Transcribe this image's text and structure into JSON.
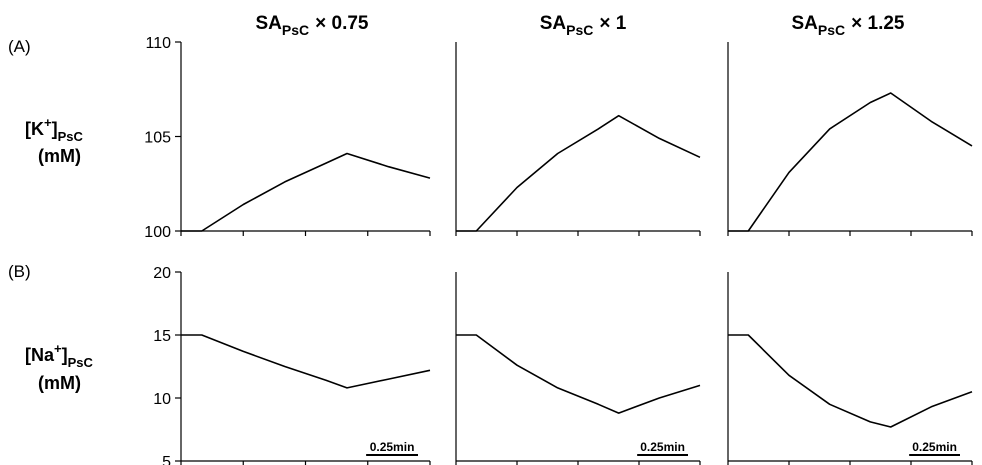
{
  "columns": [
    {
      "base": "SA",
      "sub": "PsC",
      "mult": "× 0.75"
    },
    {
      "base": "SA",
      "sub": "PsC",
      "mult": "× 1"
    },
    {
      "base": "SA",
      "sub": "PsC",
      "mult": "× 1.25"
    }
  ],
  "rows": [
    {
      "panel_label": "(A)",
      "ylabel": {
        "ion": "K",
        "charge": "+",
        "sub": "PsC",
        "unit": "(mM)"
      }
    },
    {
      "panel_label": "(B)",
      "ylabel": {
        "ion": "Na",
        "charge": "+",
        "sub": "PsC",
        "unit": "(mM)"
      }
    }
  ],
  "scale_bar": {
    "label": "0.25min",
    "length_min": 0.25
  },
  "chart_data": [
    {
      "type": "line",
      "panel": "A1",
      "ylim": [
        100,
        110
      ],
      "yticks": [
        100,
        105,
        110
      ],
      "xlim": [
        0,
        1.2
      ],
      "series": [
        {
          "x": [
            0,
            0.1,
            0.3,
            0.5,
            0.7,
            0.8,
            1.0,
            1.2
          ],
          "y": [
            100,
            100,
            101.4,
            102.6,
            103.6,
            104.1,
            103.4,
            102.8
          ]
        }
      ]
    },
    {
      "type": "line",
      "panel": "A2",
      "ylim": [
        100,
        110
      ],
      "yticks": [
        100,
        105,
        110
      ],
      "xlim": [
        0,
        1.2
      ],
      "series": [
        {
          "x": [
            0,
            0.1,
            0.3,
            0.5,
            0.7,
            0.8,
            1.0,
            1.2
          ],
          "y": [
            100,
            100,
            102.3,
            104.1,
            105.4,
            106.1,
            104.9,
            103.9
          ]
        }
      ]
    },
    {
      "type": "line",
      "panel": "A3",
      "ylim": [
        100,
        110
      ],
      "yticks": [
        100,
        105,
        110
      ],
      "xlim": [
        0,
        1.2
      ],
      "series": [
        {
          "x": [
            0,
            0.1,
            0.3,
            0.5,
            0.7,
            0.8,
            1.0,
            1.2
          ],
          "y": [
            100,
            100,
            103.1,
            105.4,
            106.8,
            107.3,
            105.8,
            104.5
          ]
        }
      ]
    },
    {
      "type": "line",
      "panel": "B1",
      "ylim": [
        5,
        20
      ],
      "yticks": [
        5,
        10,
        15,
        20
      ],
      "xlim": [
        0,
        1.2
      ],
      "series": [
        {
          "x": [
            0,
            0.1,
            0.3,
            0.5,
            0.7,
            0.8,
            1.0,
            1.2
          ],
          "y": [
            15,
            15,
            13.7,
            12.5,
            11.4,
            10.8,
            11.5,
            12.2
          ]
        }
      ]
    },
    {
      "type": "line",
      "panel": "B2",
      "ylim": [
        5,
        20
      ],
      "yticks": [
        5,
        10,
        15,
        20
      ],
      "xlim": [
        0,
        1.2
      ],
      "series": [
        {
          "x": [
            0,
            0.1,
            0.3,
            0.5,
            0.7,
            0.8,
            1.0,
            1.2
          ],
          "y": [
            15,
            15,
            12.6,
            10.8,
            9.5,
            8.8,
            10.0,
            11.0
          ]
        }
      ]
    },
    {
      "type": "line",
      "panel": "B3",
      "ylim": [
        5,
        20
      ],
      "yticks": [
        5,
        10,
        15,
        20
      ],
      "xlim": [
        0,
        1.2
      ],
      "series": [
        {
          "x": [
            0,
            0.1,
            0.3,
            0.5,
            0.7,
            0.8,
            1.0,
            1.2
          ],
          "y": [
            15,
            15,
            11.8,
            9.5,
            8.1,
            7.7,
            9.3,
            10.5
          ]
        }
      ]
    }
  ]
}
